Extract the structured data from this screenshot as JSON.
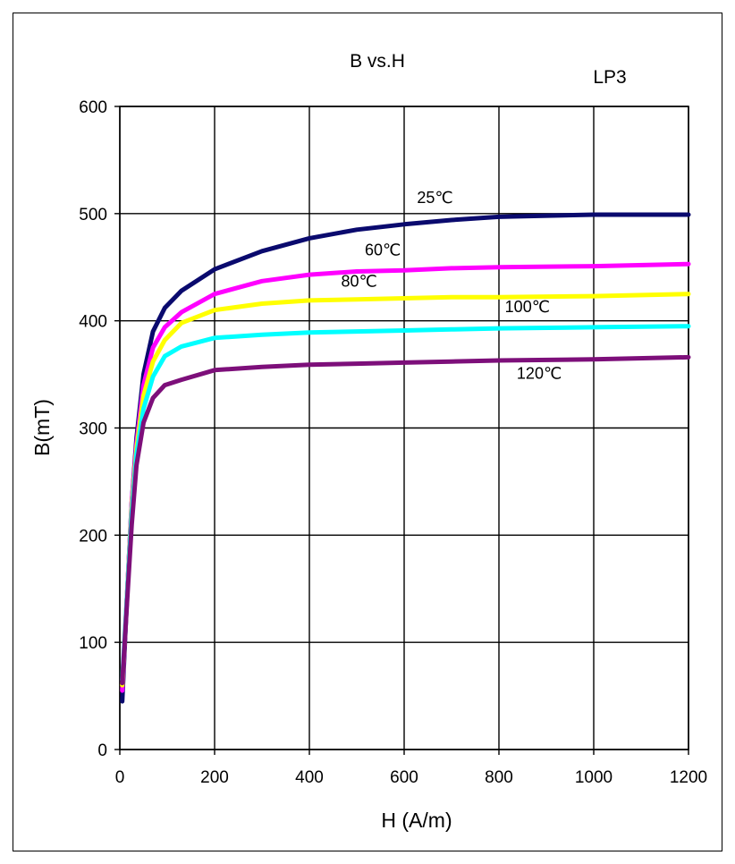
{
  "chart_data": {
    "type": "line",
    "title": "B vs.H",
    "subtitle": "LP3",
    "xlabel": "H (A/m)",
    "ylabel": "B(mT)",
    "xlim": [
      0,
      1200
    ],
    "ylim": [
      0,
      600
    ],
    "xticks": [
      0,
      200,
      400,
      600,
      800,
      1000,
      1200
    ],
    "yticks": [
      0,
      100,
      200,
      300,
      400,
      500,
      600
    ],
    "grid": true,
    "series": [
      {
        "name": "25℃",
        "color": "#0a0a6e",
        "points": [
          [
            5,
            45
          ],
          [
            15,
            140
          ],
          [
            25,
            230
          ],
          [
            35,
            290
          ],
          [
            50,
            350
          ],
          [
            70,
            390
          ],
          [
            95,
            412
          ],
          [
            130,
            428
          ],
          [
            200,
            448
          ],
          [
            300,
            465
          ],
          [
            400,
            477
          ],
          [
            500,
            485
          ],
          [
            600,
            490
          ],
          [
            700,
            494
          ],
          [
            800,
            497
          ],
          [
            1000,
            499
          ],
          [
            1200,
            499
          ]
        ]
      },
      {
        "name": "60℃",
        "color": "#ff00ff",
        "points": [
          [
            5,
            55
          ],
          [
            15,
            140
          ],
          [
            25,
            230
          ],
          [
            35,
            285
          ],
          [
            50,
            340
          ],
          [
            70,
            375
          ],
          [
            95,
            394
          ],
          [
            130,
            408
          ],
          [
            200,
            425
          ],
          [
            300,
            437
          ],
          [
            400,
            443
          ],
          [
            500,
            446
          ],
          [
            600,
            447
          ],
          [
            700,
            449
          ],
          [
            800,
            450
          ],
          [
            1000,
            451
          ],
          [
            1200,
            453
          ]
        ]
      },
      {
        "name": "80℃",
        "color": "#ffff00",
        "points": [
          [
            5,
            60
          ],
          [
            15,
            140
          ],
          [
            25,
            225
          ],
          [
            35,
            280
          ],
          [
            50,
            330
          ],
          [
            70,
            362
          ],
          [
            95,
            382
          ],
          [
            130,
            398
          ],
          [
            200,
            410
          ],
          [
            300,
            416
          ],
          [
            400,
            419
          ],
          [
            500,
            420
          ],
          [
            600,
            421
          ],
          [
            700,
            422
          ],
          [
            800,
            422
          ],
          [
            1000,
            423
          ],
          [
            1200,
            425
          ]
        ]
      },
      {
        "name": "100℃",
        "color": "#00ffff",
        "points": [
          [
            5,
            65
          ],
          [
            15,
            140
          ],
          [
            25,
            220
          ],
          [
            35,
            275
          ],
          [
            50,
            318
          ],
          [
            70,
            348
          ],
          [
            95,
            367
          ],
          [
            130,
            376
          ],
          [
            200,
            384
          ],
          [
            300,
            387
          ],
          [
            400,
            389
          ],
          [
            500,
            390
          ],
          [
            600,
            391
          ],
          [
            700,
            392
          ],
          [
            800,
            393
          ],
          [
            1000,
            394
          ],
          [
            1200,
            395
          ]
        ]
      },
      {
        "name": "120℃",
        "color": "#7d0f7a",
        "points": [
          [
            5,
            62
          ],
          [
            15,
            135
          ],
          [
            25,
            210
          ],
          [
            35,
            265
          ],
          [
            50,
            305
          ],
          [
            70,
            328
          ],
          [
            95,
            340
          ],
          [
            130,
            345
          ],
          [
            200,
            354
          ],
          [
            300,
            357
          ],
          [
            400,
            359
          ],
          [
            500,
            360
          ],
          [
            600,
            361
          ],
          [
            700,
            362
          ],
          [
            800,
            363
          ],
          [
            1000,
            364
          ],
          [
            1200,
            366
          ]
        ]
      }
    ],
    "annotations": [
      {
        "text": "25℃",
        "x": 665,
        "y": 510
      },
      {
        "text": "60℃",
        "x": 555,
        "y": 461
      },
      {
        "text": "80℃",
        "x": 505,
        "y": 432
      },
      {
        "text": "100℃",
        "x": 860,
        "y": 408
      },
      {
        "text": "120℃",
        "x": 885,
        "y": 346
      }
    ]
  }
}
